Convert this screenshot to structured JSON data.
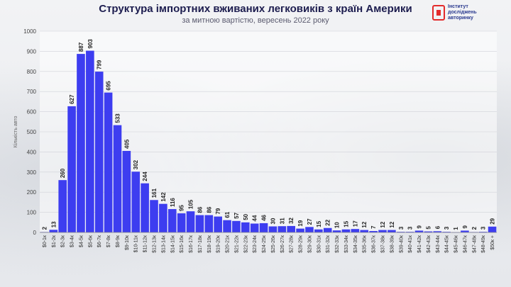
{
  "header": {
    "title": "Структура імпортних вживаних легковиків з країн Америки",
    "subtitle": "за митною вартістю, вересень 2022 року"
  },
  "logo": {
    "lines": [
      "Інститут",
      "досліджень",
      "авторинку"
    ],
    "colors": {
      "red": "#e32b2b",
      "blue": "#2b3a8f"
    }
  },
  "colors": {
    "bar": "#3d3df0",
    "grid": "#d0d2d8"
  },
  "chart_data": {
    "type": "bar",
    "ylabel": "Кількість авто",
    "ylim": [
      0,
      1000
    ],
    "yticks": [
      0,
      100,
      200,
      300,
      400,
      500,
      600,
      700,
      800,
      900,
      1000
    ],
    "grid": true,
    "categories": [
      "$0-1к",
      "$1-2к",
      "$2-3к",
      "$3-4к",
      "$4-5к",
      "$5-6к",
      "$6-7к",
      "$7-8к",
      "$8-9к",
      "$9-10к",
      "$10-11к",
      "$11-12к",
      "$12-13к",
      "$13-14к",
      "$14-15к",
      "$15-16к",
      "$16-17к",
      "$17-18к",
      "$18-19к",
      "$19-20к",
      "$20-21к",
      "$21-22к",
      "$22-23к",
      "$23-24к",
      "$24-25к",
      "$25-26к",
      "$26-27к",
      "$27-28к",
      "$28-29к",
      "$29-30к",
      "$30-31к",
      "$31-32к",
      "$32-33к",
      "$33-34к",
      "$34-35к",
      "$35-36к",
      "$36-37к",
      "$37-38к",
      "$38-39к",
      "$39-40к",
      "$40-41к",
      "$41-42к",
      "$42-43к",
      "$43-44к",
      "$44-45к",
      "$45-46к",
      "$46-47к",
      "$47-48к",
      "$48-49к",
      "$50к +"
    ],
    "values": [
      2,
      13,
      260,
      627,
      887,
      903,
      799,
      695,
      533,
      405,
      302,
      244,
      161,
      142,
      116,
      95,
      105,
      86,
      86,
      79,
      61,
      57,
      50,
      44,
      46,
      30,
      31,
      32,
      19,
      27,
      15,
      22,
      10,
      15,
      17,
      12,
      7,
      12,
      12,
      3,
      3,
      9,
      5,
      6,
      3,
      1,
      9,
      2,
      3,
      29
    ]
  }
}
